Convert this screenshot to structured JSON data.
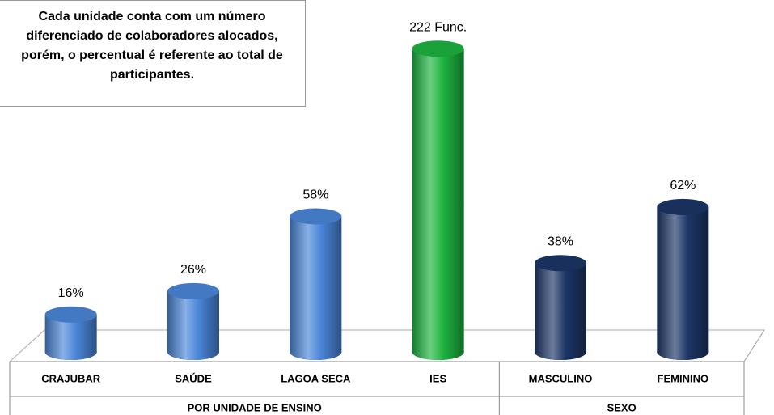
{
  "chart_data": {
    "type": "bar",
    "annotation": "Cada unidade conta com um número diferenciado de colaboradores alocados, porém, o percentual é referente ao total de participantes.",
    "categories": [
      "CRAJUBAR",
      "SAÚDE",
      "LAGOA SECA",
      "IES",
      "MASCULINO",
      "FEMININO"
    ],
    "groups": [
      {
        "label": "POR UNIDADE DE ENSINO",
        "span": 4
      },
      {
        "label": "SEXO",
        "span": 2
      }
    ],
    "series": [
      {
        "color": "#4a86d8",
        "values": [
          16,
          26,
          58,
          null,
          null,
          null
        ],
        "value_labels": [
          "16%",
          "26%",
          "58%",
          null,
          null,
          null
        ]
      },
      {
        "color": "#1db33f",
        "axis": "y2",
        "values": [
          null,
          null,
          null,
          222,
          null,
          null
        ],
        "value_labels": [
          null,
          null,
          null,
          "222 Func.",
          null,
          null
        ]
      },
      {
        "color": "#1c3566",
        "values": [
          null,
          null,
          null,
          null,
          38,
          62
        ],
        "value_labels": [
          null,
          null,
          null,
          null,
          "38%",
          "62%"
        ]
      }
    ],
    "ylim": [
      0,
      135
    ],
    "y2lim": [
      0,
      231
    ]
  }
}
